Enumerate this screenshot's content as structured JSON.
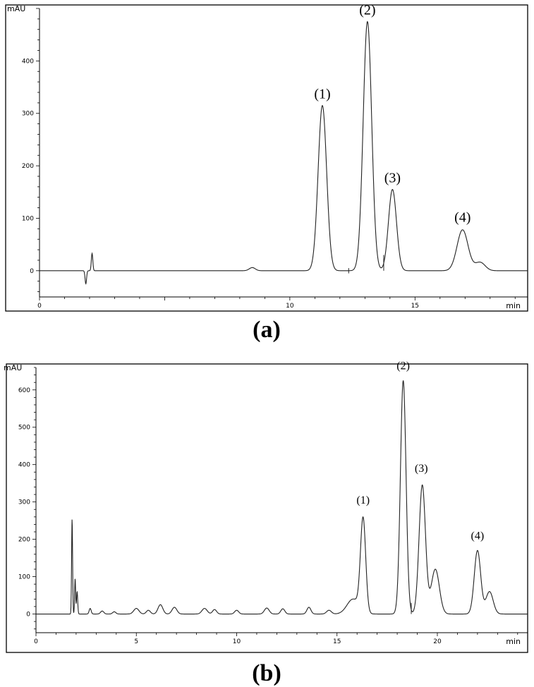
{
  "chart_data": [
    {
      "panel_id": "a",
      "caption": "(a)",
      "type": "line",
      "ylabel": "mAU",
      "xlabel": "min",
      "xlim": [
        0,
        19.5
      ],
      "ylim": [
        -50,
        500
      ],
      "xticks": [
        0,
        10,
        15,
        20
      ],
      "yticks": [
        0,
        100,
        200,
        300,
        400
      ],
      "grid": false,
      "peak_labels": [
        {
          "text": "(1)",
          "x": 11.3,
          "y": 315
        },
        {
          "text": "(2)",
          "x": 13.1,
          "y": 475
        },
        {
          "text": "(3)",
          "x": 14.1,
          "y": 155
        },
        {
          "text": "(4)",
          "x": 16.9,
          "y": 80
        }
      ],
      "series": [
        {
          "baseline": 0,
          "peaks": [
            {
              "x": 1.85,
              "h": -25,
              "w": 0.03
            },
            {
              "x": 2.1,
              "h": 33,
              "w": 0.03
            },
            {
              "x": 8.5,
              "h": 6,
              "w": 0.12
            },
            {
              "x": 11.3,
              "h": 315,
              "w": 0.17
            },
            {
              "x": 13.1,
              "h": 475,
              "w": 0.17
            },
            {
              "x": 14.1,
              "h": 155,
              "w": 0.16
            },
            {
              "x": 16.9,
              "h": 78,
              "w": 0.22
            },
            {
              "x": 17.6,
              "h": 16,
              "w": 0.2
            }
          ],
          "markers": [
            {
              "x": 12.35,
              "y0": -5,
              "y1": 5
            },
            {
              "x": 13.75,
              "y0": 0,
              "y1": 30
            }
          ]
        }
      ]
    },
    {
      "panel_id": "b",
      "caption": "(b)",
      "type": "line",
      "ylabel": "mAU",
      "xlabel": "min",
      "xlim": [
        0,
        24.5
      ],
      "ylim": [
        -50,
        660
      ],
      "xticks": [
        0,
        5,
        10,
        15,
        20
      ],
      "yticks": [
        0,
        100,
        200,
        300,
        400,
        500,
        600
      ],
      "grid": false,
      "peak_labels": [
        {
          "text": "(1)",
          "x": 16.3,
          "y": 280
        },
        {
          "text": "(2)",
          "x": 18.3,
          "y": 640
        },
        {
          "text": "(3)",
          "x": 19.2,
          "y": 365
        },
        {
          "text": "(4)",
          "x": 22.0,
          "y": 185
        }
      ],
      "series": [
        {
          "baseline": 0,
          "peaks": [
            {
              "x": 1.8,
              "h": 255,
              "w": 0.025
            },
            {
              "x": 1.95,
              "h": 95,
              "w": 0.025
            },
            {
              "x": 2.05,
              "h": 60,
              "w": 0.03
            },
            {
              "x": 2.7,
              "h": 15,
              "w": 0.05
            },
            {
              "x": 3.3,
              "h": 8,
              "w": 0.08
            },
            {
              "x": 3.9,
              "h": 6,
              "w": 0.08
            },
            {
              "x": 5.0,
              "h": 15,
              "w": 0.13
            },
            {
              "x": 5.6,
              "h": 10,
              "w": 0.1
            },
            {
              "x": 6.2,
              "h": 25,
              "w": 0.12
            },
            {
              "x": 6.9,
              "h": 18,
              "w": 0.12
            },
            {
              "x": 8.4,
              "h": 15,
              "w": 0.13
            },
            {
              "x": 8.9,
              "h": 12,
              "w": 0.1
            },
            {
              "x": 10.0,
              "h": 10,
              "w": 0.1
            },
            {
              "x": 11.5,
              "h": 16,
              "w": 0.12
            },
            {
              "x": 12.3,
              "h": 14,
              "w": 0.1
            },
            {
              "x": 13.6,
              "h": 18,
              "w": 0.1
            },
            {
              "x": 14.6,
              "h": 10,
              "w": 0.12
            },
            {
              "x": 15.8,
              "h": 40,
              "w": 0.3
            },
            {
              "x": 16.3,
              "h": 250,
              "w": 0.13
            },
            {
              "x": 18.3,
              "h": 625,
              "w": 0.14
            },
            {
              "x": 19.25,
              "h": 345,
              "w": 0.16
            },
            {
              "x": 19.9,
              "h": 120,
              "w": 0.2
            },
            {
              "x": 22.0,
              "h": 170,
              "w": 0.16
            },
            {
              "x": 22.6,
              "h": 60,
              "w": 0.18
            }
          ],
          "markers": [
            {
              "x": 18.7,
              "y0": 0,
              "y1": 30
            }
          ]
        }
      ]
    }
  ]
}
